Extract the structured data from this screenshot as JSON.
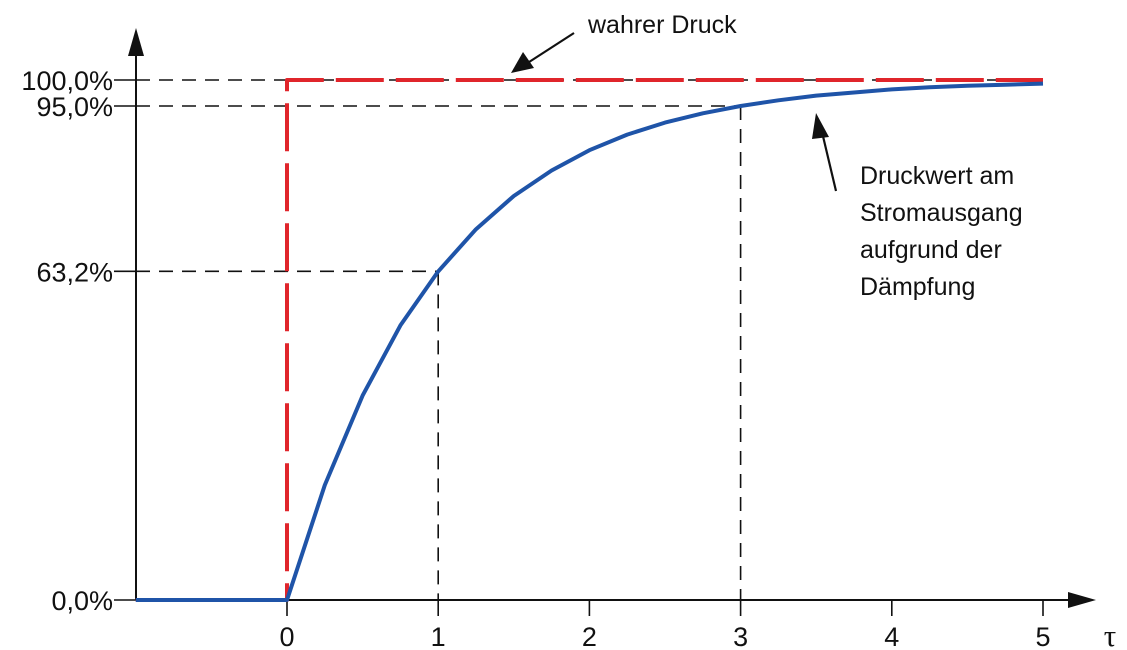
{
  "chart_data": {
    "type": "line",
    "x_ticks": [
      0,
      1,
      2,
      3,
      4,
      5
    ],
    "x_tick_labels": [
      "0",
      "1",
      "2",
      "3",
      "4",
      "5"
    ],
    "xlim": [
      -1,
      5
    ],
    "ylim": [
      0,
      100
    ],
    "xlabel": "τ",
    "y_reference_values": [
      0,
      63.2,
      95,
      100
    ],
    "y_reference_labels": [
      "0,0%",
      "63,2%",
      "95,0%",
      "100,0%"
    ],
    "series": [
      {
        "name": "wahrer Druck",
        "color": "#e0252b",
        "style": "dashed",
        "x": [
          -1,
          0,
          0,
          5
        ],
        "y": [
          0,
          0,
          100,
          100
        ]
      },
      {
        "name": "Druckwert am Stromausgang aufgrund der Dämpfung",
        "color": "#1f54a8",
        "style": "solid",
        "x": [
          -1,
          0,
          0.25,
          0.5,
          0.75,
          1,
          1.25,
          1.5,
          1.75,
          2,
          2.25,
          2.5,
          2.75,
          3,
          3.25,
          3.5,
          3.75,
          4,
          4.25,
          4.5,
          4.75,
          5
        ],
        "y": [
          0,
          0,
          22.1,
          39.3,
          52.8,
          63.2,
          71.3,
          77.7,
          82.6,
          86.5,
          89.5,
          91.8,
          93.6,
          95.0,
          96.1,
          97.0,
          97.6,
          98.2,
          98.6,
          98.9,
          99.1,
          99.3
        ]
      }
    ],
    "annotations": {
      "true_pressure": "wahrer Druck",
      "damped_output": [
        "Druckwert am",
        "Stromausgang",
        "aufgrund der",
        "Dämpfung"
      ]
    },
    "grid": false
  }
}
